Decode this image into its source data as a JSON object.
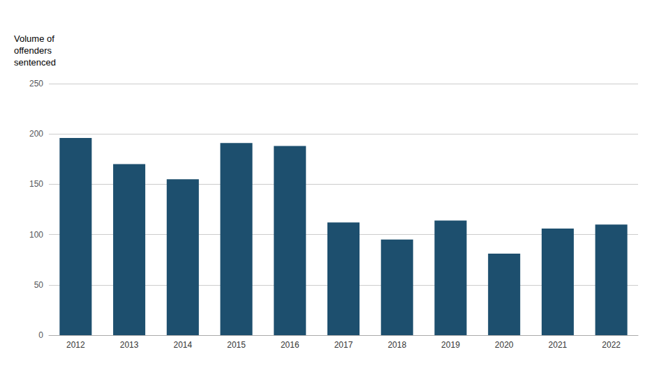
{
  "chart_data": {
    "type": "bar",
    "ylabel": "Volume of\noffenders\nsentenced",
    "categories": [
      "2012",
      "2013",
      "2014",
      "2015",
      "2016",
      "2017",
      "2018",
      "2019",
      "2020",
      "2021",
      "2022"
    ],
    "values": [
      196,
      170,
      155,
      191,
      188,
      112,
      95,
      114,
      81,
      106,
      110
    ],
    "color": "#1d4f6e",
    "ylim": [
      0,
      250
    ],
    "yticks": [
      0,
      50,
      100,
      150,
      200,
      250
    ],
    "grid": true
  }
}
